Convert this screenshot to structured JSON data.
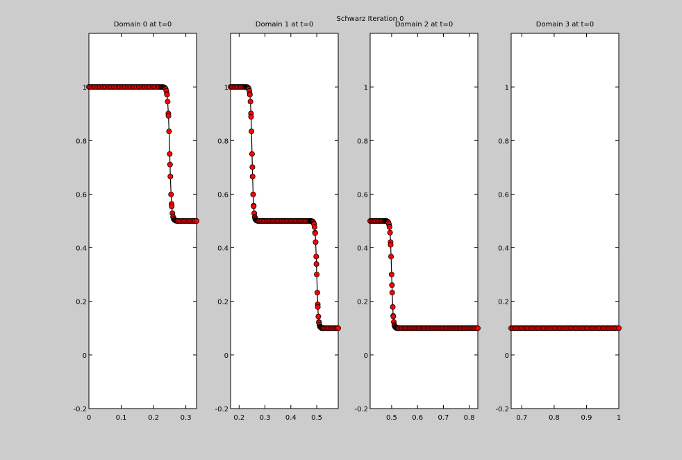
{
  "figure": {
    "title": "Schwarz Iteration 0",
    "background": "#cccccc"
  },
  "chart_data": [
    {
      "type": "line",
      "title": "Domain 0 at t=0",
      "xlim": [
        0,
        0.333
      ],
      "ylim": [
        -0.2,
        1.2
      ],
      "xticks": [
        0,
        0.1,
        0.2,
        0.3
      ],
      "xtick_labels": [
        "0",
        "0.1",
        "0.2",
        "0.3"
      ],
      "yticks": [
        -0.2,
        0,
        0.2,
        0.4,
        0.6,
        0.8,
        1
      ],
      "ytick_labels": [
        "-0.2",
        "0",
        "0.2",
        "0.4",
        "0.6",
        "0.8",
        "1"
      ],
      "marker": "o",
      "color": "#ff0000",
      "edge_color": "#000000",
      "x_range": [
        0,
        0.333
      ],
      "n_points": 70,
      "steps": [
        {
          "center": 0.25,
          "drop": 0.5,
          "width": 0.006
        }
      ],
      "start_value": 1.0
    },
    {
      "type": "line",
      "title": "Domain 1 at t=0",
      "xlim": [
        0.167,
        0.583
      ],
      "ylim": [
        -0.2,
        1.2
      ],
      "xticks": [
        0.2,
        0.3,
        0.4,
        0.5
      ],
      "xtick_labels": [
        "0.2",
        "0.3",
        "0.4",
        "0.5"
      ],
      "yticks": [
        -0.2,
        0,
        0.2,
        0.4,
        0.6,
        0.8,
        1
      ],
      "ytick_labels": [
        "-0.2",
        "0",
        "0.2",
        "0.4",
        "0.6",
        "0.8",
        "1"
      ],
      "marker": "o",
      "color": "#ff0000",
      "edge_color": "#000000",
      "x_range": [
        0.167,
        0.583
      ],
      "n_points": 85,
      "steps": [
        {
          "center": 0.25,
          "drop": 0.5,
          "width": 0.006
        },
        {
          "center": 0.5,
          "drop": 0.4,
          "width": 0.006
        }
      ],
      "start_value": 1.0
    },
    {
      "type": "line",
      "title": "Domain 2 at t=0",
      "xlim": [
        0.417,
        0.833
      ],
      "ylim": [
        -0.2,
        1.2
      ],
      "xticks": [
        0.5,
        0.6,
        0.7,
        0.8
      ],
      "xtick_labels": [
        "0.5",
        "0.6",
        "0.7",
        "0.8"
      ],
      "yticks": [
        -0.2,
        0,
        0.2,
        0.4,
        0.6,
        0.8,
        1
      ],
      "ytick_labels": [
        "-0.2",
        "0",
        "0.2",
        "0.4",
        "0.6",
        "0.8",
        "1"
      ],
      "marker": "o",
      "color": "#ff0000",
      "edge_color": "#000000",
      "x_range": [
        0.417,
        0.833
      ],
      "n_points": 85,
      "steps": [
        {
          "center": 0.5,
          "drop": 0.4,
          "width": 0.006
        }
      ],
      "start_value": 0.5
    },
    {
      "type": "line",
      "title": "Domain 3 at t=0",
      "xlim": [
        0.667,
        1
      ],
      "ylim": [
        -0.2,
        1.2
      ],
      "xticks": [
        0.7,
        0.8,
        0.9,
        1
      ],
      "xtick_labels": [
        "0.7",
        "0.8",
        "0.9",
        "1"
      ],
      "yticks": [
        -0.2,
        0,
        0.2,
        0.4,
        0.6,
        0.8,
        1
      ],
      "ytick_labels": [
        "-0.2",
        "0",
        "0.2",
        "0.4",
        "0.6",
        "0.8",
        "1"
      ],
      "marker": "o",
      "color": "#ff0000",
      "edge_color": "#000000",
      "x_range": [
        0.667,
        1
      ],
      "n_points": 68,
      "steps": [],
      "start_value": 0.1
    }
  ]
}
